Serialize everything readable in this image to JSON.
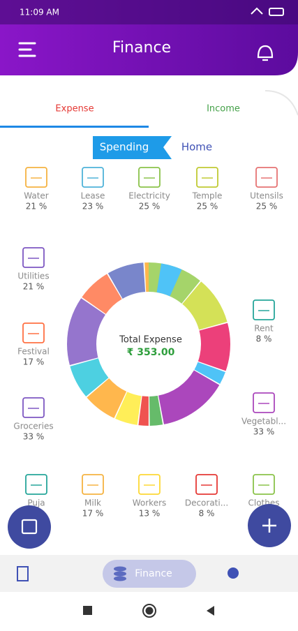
{
  "status_bar": {
    "time": "11:09 AM"
  },
  "header": {
    "title": "Finance"
  },
  "tabs": [
    "Expense",
    "Income"
  ],
  "toggle": [
    "Spending",
    "Home"
  ],
  "items": [
    {
      "label": "Water",
      "percent": "21 %"
    },
    {
      "label": "Lease",
      "percent": "23 %"
    },
    {
      "label": "Electricity",
      "percent": "25 %"
    },
    {
      "label": "Temple",
      "percent": "25 %"
    },
    {
      "label": "Utensils",
      "percent": "25 %"
    },
    {
      "label": "Utilities",
      "percent": "21 %"
    },
    {
      "label": "Rent",
      "percent": "8 %"
    },
    {
      "label": "Festival",
      "percent": "17 %"
    },
    {
      "label": "Groceries",
      "percent": "33 %"
    },
    {
      "label": "Vegetabl...",
      "percent": "33 %"
    },
    {
      "label": "Puja"
    },
    {
      "label": "Milk",
      "percent": "17 %"
    },
    {
      "label": "Workers",
      "percent": "13 %"
    },
    {
      "label": "Decorati...",
      "percent": "8 %"
    },
    {
      "label": "Clothes"
    }
  ],
  "donut": {
    "caption": "Total Expense",
    "total": "₹ 353.00"
  },
  "bottom_nav": {
    "active": "Finance"
  }
}
